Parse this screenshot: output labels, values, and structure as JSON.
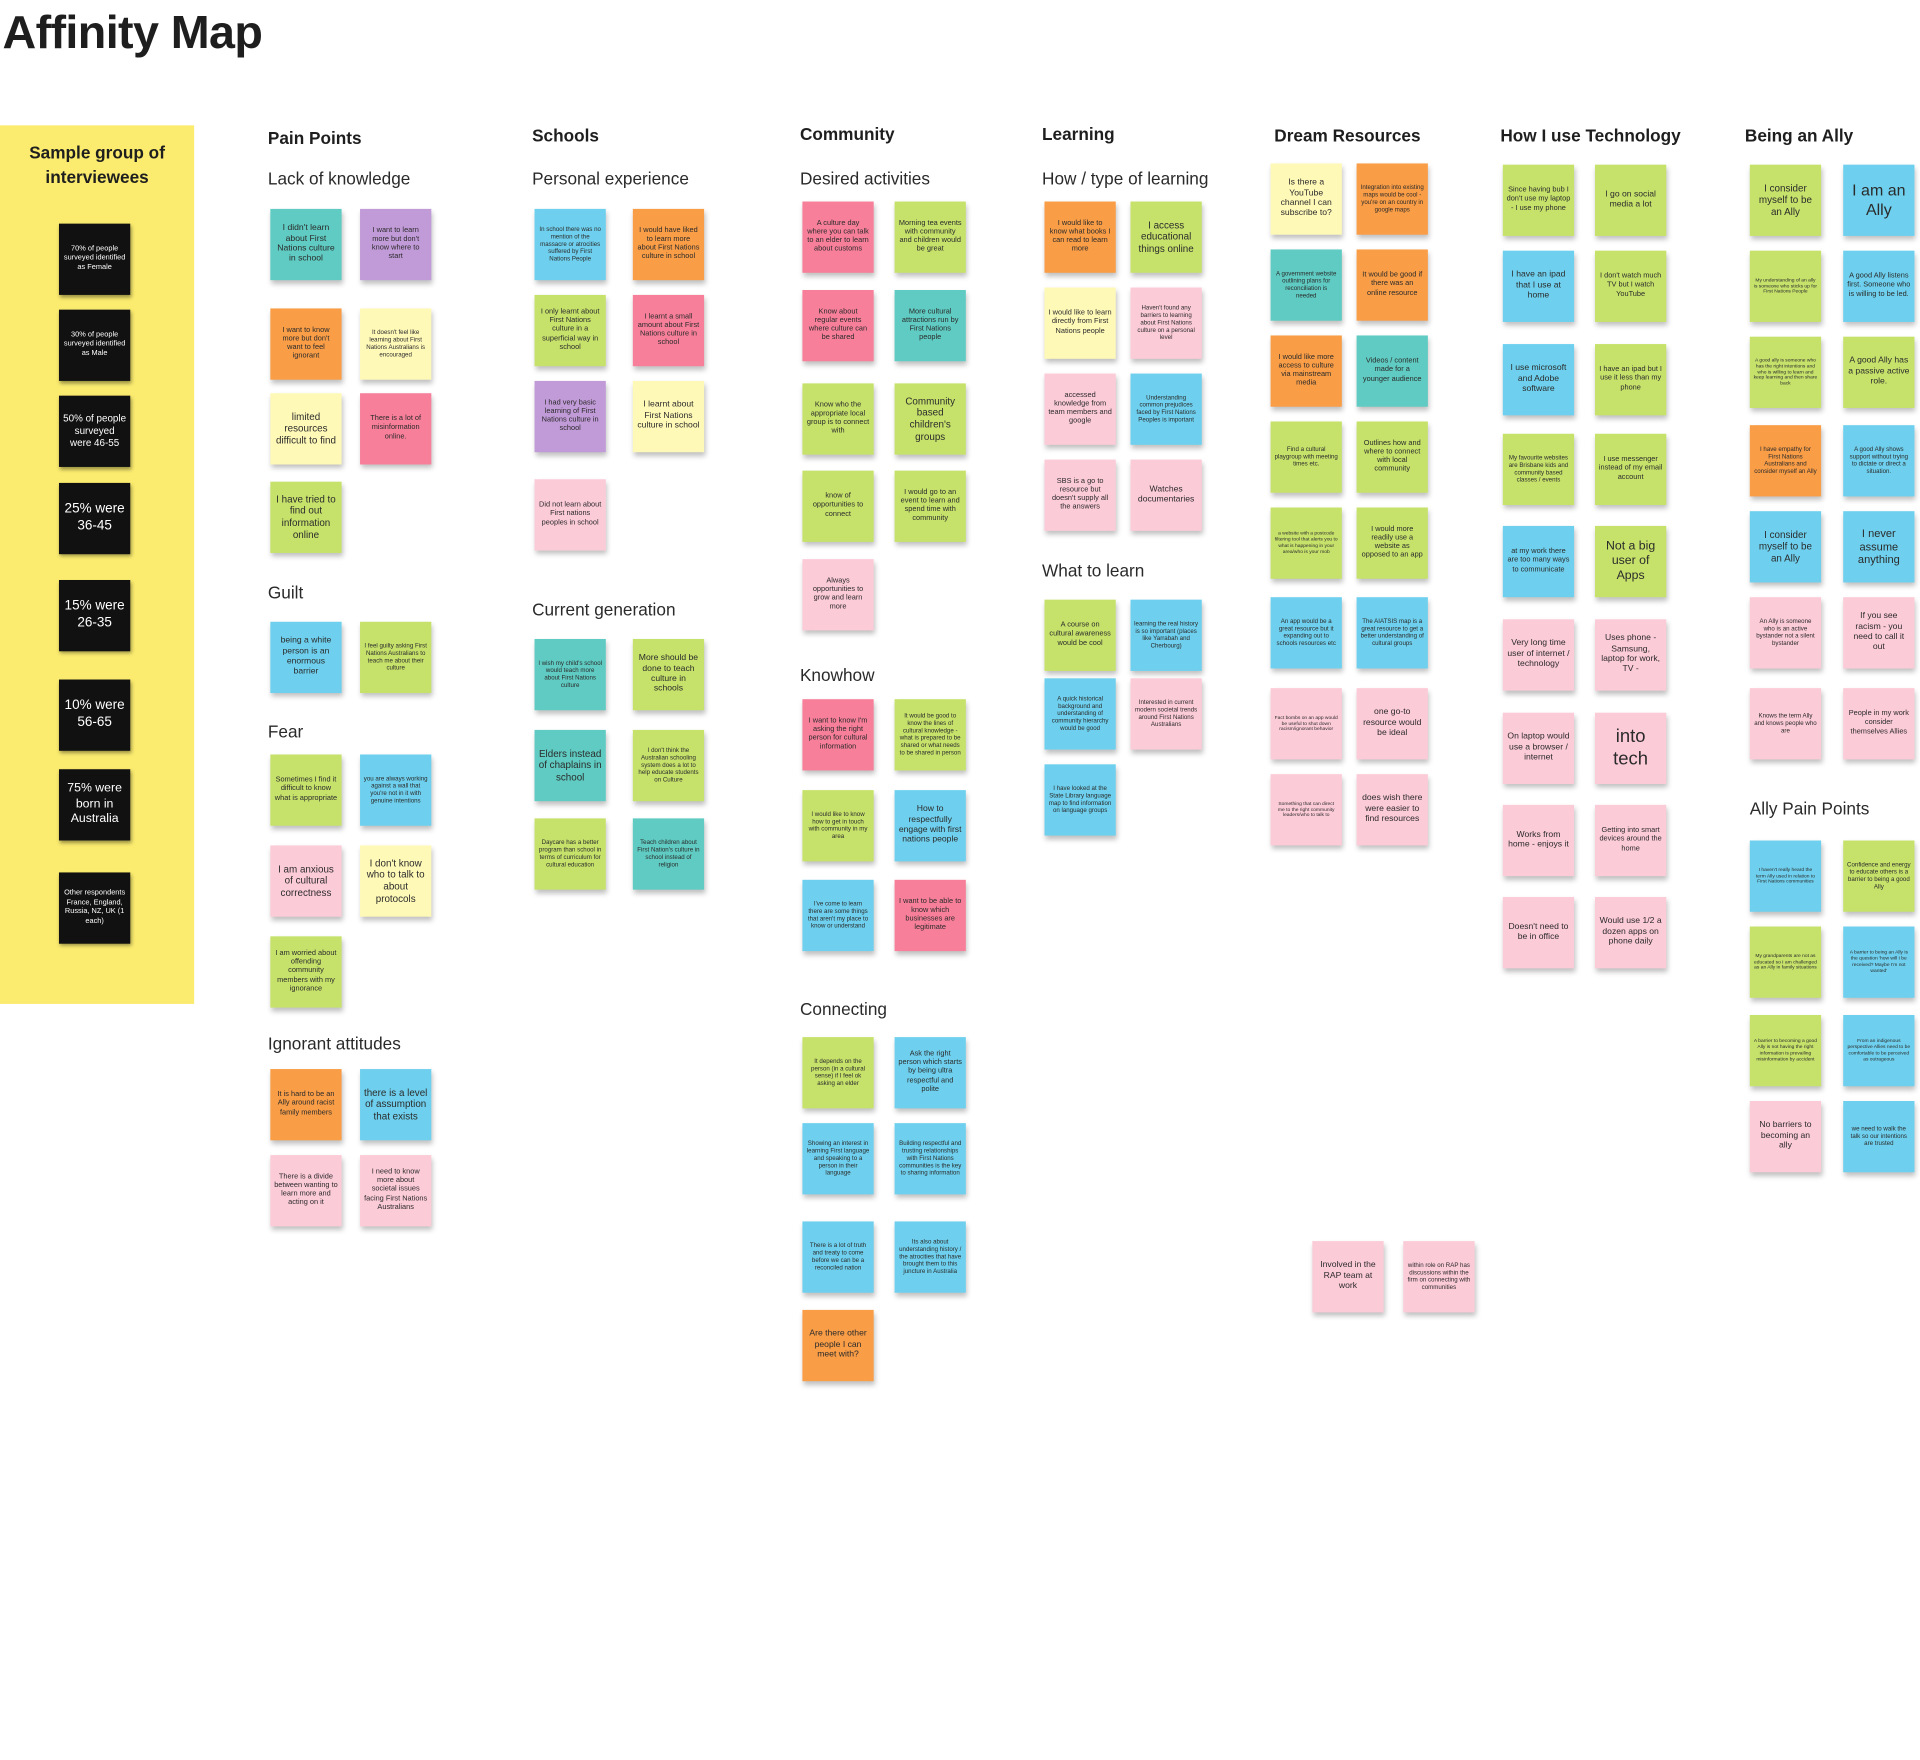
{
  "page": {
    "title": "Affinity Map"
  },
  "colors": {
    "yellow": "#fff59a",
    "lyellow": "#fff9b8",
    "green": "#c6e26b",
    "teal": "#5fcbc2",
    "blue": "#6ed0ee",
    "orange": "#f99d46",
    "pink": "#f77f9a",
    "lpink": "#fccbd8",
    "purple": "#c19ad8",
    "panel": "#fbec6f",
    "dark": "#111111"
  },
  "sample": {
    "title": "Sample group of interviewees",
    "stats": [
      "70% of people surveyed identified as Female",
      "30% of people surveyed identified as Male",
      "50% of people surveyed were 46-55",
      "25% were 36-45",
      "15% were 26-35",
      "10% were 56-65",
      "75% were born in Australia",
      "Other respondents France, England, Russia, NZ, UK (1 each)"
    ]
  },
  "categories": [
    "Pain Points",
    "Schools",
    "Community",
    "Learning",
    "Dream Resources",
    "How I use Technology",
    "Being an Ally"
  ],
  "subheadings": [
    "Lack of knowledge",
    "Guilt",
    "Fear",
    "Ignorant attitudes",
    "Personal experience",
    "Current generation",
    "Desired activities",
    "Knowhow",
    "Connecting",
    "How / type of learning",
    "What to learn",
    "Ally Pain Points"
  ],
  "notes": [
    "I didn't learn about First Nations culture in school",
    "I want to learn more but don't know where to start",
    "I want to know more but don't want to feel ignorant",
    "It doesn't feel like learning about First Nations Australians is encouraged",
    "limited resources difficult to find",
    "There is a lot of misinformation online.",
    "I have tried to find out information online",
    "being a white person is an enormous barrier",
    "I feel guilty asking First Nations Australians to teach me about their culture",
    "Sometimes I find it difficult to know what is appropriate",
    "you are always working against a wall that you're not in it with genuine intentions",
    "I am anxious of cultural correctness",
    "I don't know who to talk to about protocols",
    "I am worried about offending community members with my ignorance",
    "It is hard to be an Ally around racist family members",
    "there is a level of assumption that exists",
    "There is a divide between wanting to learn more and acting on it",
    "I need to know more about societal issues facing First Nations Australians",
    "In school there was no mention of the massacre or atrocities suffered by First Nations People",
    "I would have liked to learn more about First Nations culture in school",
    "I only learnt about First Nations culture in a superficial way in school",
    "I learnt a small amount about First Nations culture in school",
    "I had very basic learning of First Nations culture in school",
    "I learnt about First Nations culture in school",
    "Did not learn about First nations peoples in school",
    "I wish my child's school would teach more about First Nations culture",
    "More should be done to teach culture in schools",
    "Elders instead of chaplains in school",
    "I don't think the Australian schooling system does a lot to help educate students on Culture",
    "Daycare has a better program than school in terms of curriculum for cultural education",
    "Teach children about First Nation's culture in school instead of religion",
    "A culture day where you can talk to an elder to learn about customs",
    "Morning tea events with community and children would be great",
    "Know about regular events where culture can be shared",
    "More cultural attractions run by First Nations people",
    "Know who the appropriate local group is to connect with",
    "Community based children's groups",
    "know of opportunities to connect",
    "I would go to an event to learn and spend time with community",
    "Always opportunities to grow and learn more",
    "I want to know I'm asking the right person for cultural information",
    "It would be good to know the lines of cultural knowledge - what is prepared to be shared or what needs to be shared in person",
    "I would like to know how to get in touch with community in my area",
    "How to respectfully engage with first nations people",
    "I've come to learn there are some things that aren't my place to know or understand",
    "I want to be able to know which businesses are legitimate",
    "It depends on the person (in a cultural sense) if I feel ok asking an elder",
    "Ask the right person which starts by being ultra respectful and polite",
    "Showing an interest in learning First language and speaking to a person in their language",
    "Building respectful and trusting relationships with First Nations communities is the key to sharing information",
    "There is a lot of truth and treaty to come before we can be a reconciled nation",
    "Its also about understanding history / the atrocities that have brought them to this juncture in Australia",
    "Are there other people I can meet with?",
    "I would like to know what books I can read to learn more",
    "I access educational things online",
    "I would like to learn directly from First Nations people",
    "Haven't found any barriers to learning about First Nations culture on a personal level",
    "accessed knowledge from team members and google",
    "Understanding common prejudices faced by First Nations Peoples is important",
    "SBS is a go to resource but doesn't supply all the answers",
    "Watches documentaries",
    "A course on cultural awareness would be cool",
    "learning the real history is so important (places like Yarrabah and Cherbourg)",
    "A quick historical background and understanding of community hierarchy would be good",
    "Interested in current modern societal trends around First Nations Australians",
    "I have looked at the State Library language map to find information on language groups",
    "Is there a YouTube channel I can subscribe to?",
    "Integration into existing maps would be cool - you're on an country in google maps",
    "A government website outlining plans for reconciliation is needed",
    "It would be good if there was an online resource",
    "I would like more access to culture via mainstream media",
    "Videos / content made for a younger audience",
    "Find a cultural playgroup with meeting times etc.",
    "Outlines how and where to connect with local community",
    "a website with a postcode filtering tool that alerts you to what is happening in your area/who is your mob",
    "I would more readily use a website as opposed to an app",
    "An app would be a great resource but it expanding out to schools resources etc",
    "The AIATSIS map is a great resource to get a better understanding of cultural groups",
    "Fact bombs on an app would be useful to shut down racism/ignorant behavior",
    "one go-to resource would be ideal",
    "Something that can direct me to the right community leaders/who to talk to",
    "does wish there were easier to find resources",
    "Involved in the RAP team at work",
    "within role on RAP has discussions within the firm on connecting with communities",
    "Since having bub I don't use my laptop - I use my phone",
    "I go on social media a lot",
    "I have an ipad that I use at home",
    "I don't watch much TV but I watch YouTube",
    "I use microsoft and Adobe software",
    "I have an ipad but I use it less than my phone",
    "My favourite websites are Brisbane kids and community based classes / events",
    "I use messenger instead of my email account",
    "at my work there are too many ways to communicate",
    "Not a big user of Apps",
    "Very long time user of internet / technology",
    "Uses phone - Samsung, laptop for work, TV -",
    "On laptop would use a browser / internet",
    "into tech",
    "Works from home - enjoys it",
    "Getting into smart devices around the home",
    "Doesn't need to be in office",
    "Would use 1/2 a dozen apps on phone daily",
    "I consider myself to be an Ally",
    "I am an Ally",
    "My understanding of an ally is someone who sticks up for First Nations People",
    "A good Ally listens first. Someone who is willing to be led.",
    "A good ally is someone who has the right intentions and who is willing to learn and keep learning and then share back",
    "A good Ally has a passive active role.",
    "I have empathy for First Nations Australians and consider myself an Ally",
    "A good Ally shows support without trying to dictate or direct a situation.",
    "I consider myself to be an Ally",
    "I never assume anything",
    "An Ally is someone who is an active bystander not a silent bystander",
    "If you see racism - you need to call it out",
    "Knows the term Ally and knows people who are",
    "People in my work consider themselves Allies",
    "I haven't really heard the term Ally used in relation to First Nations communities",
    "Confidence and energy to educate others is a barrier to being a good Ally",
    "My grandparents are not as educated so I am challenged as an Ally in family situations",
    "A barrier to being an Ally is the question 'how will I be received? Maybe I'm not wanted'",
    "A barrier to becoming a good Ally is not having the right information is prevailing misinformation by accident",
    "From an indigenous perspective Allies need to be comfortable to be perceived as outrageous",
    "No barriers to becoming an ally",
    "we need to walk the talk so our intentions are trusted"
  ]
}
